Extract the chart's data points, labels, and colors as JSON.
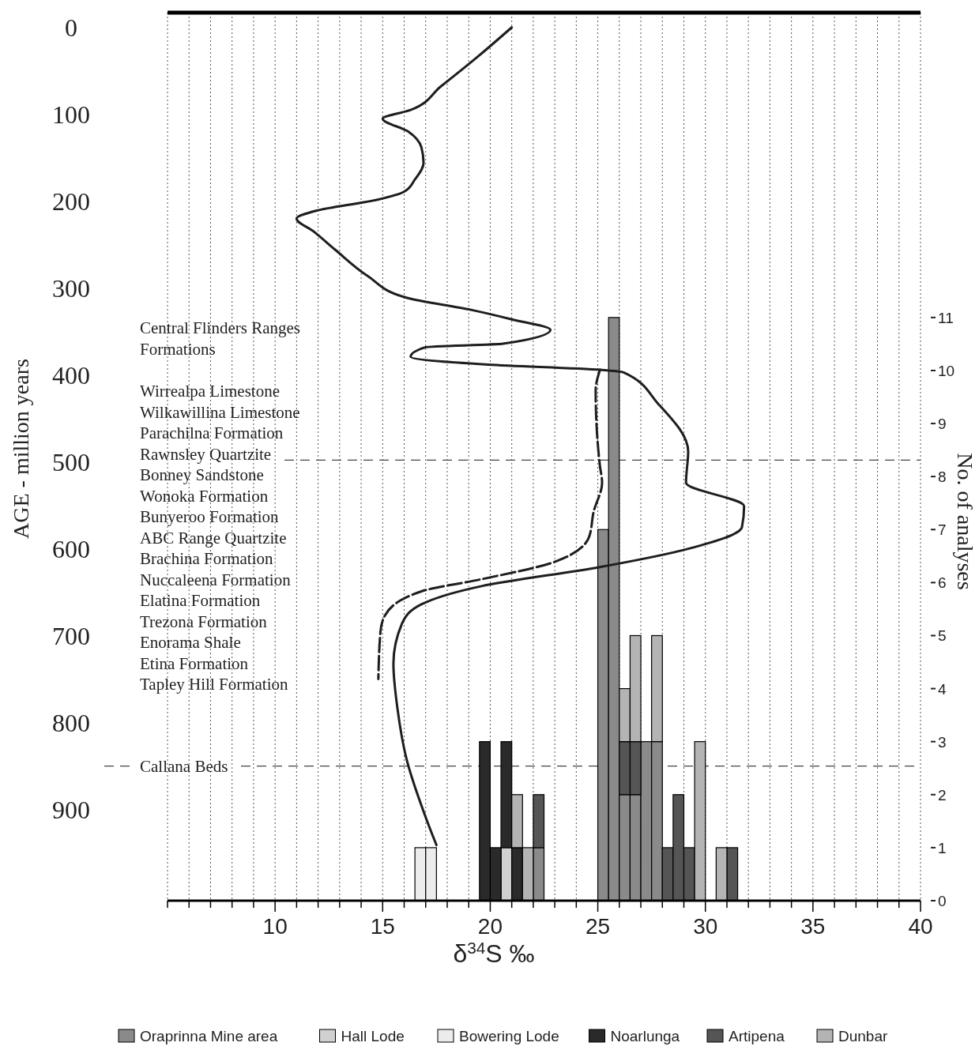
{
  "chart_data": {
    "type": "bar",
    "xlabel": "δ$^{34}$S ‰",
    "ylabel": "AGE - million years",
    "y2label": "No. of analyses",
    "x": [
      16.75,
      17.25,
      19.75,
      20.25,
      20.75,
      21.25,
      21.75,
      22.25,
      25.25,
      25.75,
      26.25,
      26.75,
      27.25,
      27.75,
      28.25,
      28.75,
      29.25,
      29.75,
      30.75,
      31.25
    ],
    "stacked": true,
    "series": [
      {
        "name": "Oraprinna Mine area",
        "color": "#8a8a8a",
        "axis": "y2",
        "values": [
          null,
          null,
          null,
          null,
          null,
          null,
          null,
          1,
          7,
          11,
          2,
          2,
          3,
          3,
          null,
          null,
          null,
          null,
          null,
          null
        ]
      },
      {
        "name": "Hall Lode",
        "color": "#d0d0d0",
        "axis": "y2",
        "values": [
          null,
          null,
          null,
          null,
          1,
          null,
          null,
          null,
          null,
          null,
          null,
          null,
          null,
          null,
          null,
          null,
          null,
          null,
          null,
          null
        ]
      },
      {
        "name": "Bowering Lode",
        "color": "#ececec",
        "axis": "y2",
        "values": [
          1,
          1,
          null,
          null,
          null,
          null,
          null,
          null,
          null,
          null,
          null,
          null,
          null,
          null,
          null,
          null,
          null,
          null,
          null,
          null
        ]
      },
      {
        "name": "Noarlunga",
        "color": "#2a2a2a",
        "axis": "y2",
        "values": [
          null,
          null,
          3,
          1,
          2,
          1,
          null,
          null,
          null,
          null,
          null,
          null,
          null,
          null,
          null,
          null,
          null,
          null,
          null,
          null
        ]
      },
      {
        "name": "Artipena",
        "color": "#555555",
        "axis": "y2",
        "values": [
          null,
          null,
          null,
          null,
          null,
          null,
          null,
          1,
          null,
          null,
          1,
          1,
          null,
          null,
          1,
          2,
          1,
          null,
          null,
          1
        ]
      },
      {
        "name": "Dunbar",
        "color": "#b4b4b4",
        "axis": "y2",
        "values": [
          null,
          null,
          null,
          null,
          null,
          1,
          1,
          null,
          null,
          null,
          1,
          2,
          null,
          2,
          null,
          null,
          null,
          3,
          1,
          null
        ]
      },
      {
        "type": "line",
        "color": "#1e1e1e",
        "line_style": "solid",
        "x": [
          21.0,
          19.5,
          17.7,
          16.3,
          15.0,
          16.2,
          16.8,
          16.9,
          16.5,
          16.0,
          14.8,
          11.9,
          11.0,
          11.8,
          12.8,
          14.3,
          16.1,
          19.1,
          21.0,
          22.8,
          20.6,
          17.0,
          16.3,
          19.9,
          25.1,
          26.2,
          27.8,
          29.2,
          29.1,
          31.8,
          31.7,
          29.2,
          25.1,
          19.6,
          16.8,
          15.9,
          15.5,
          15.7,
          16.1,
          17.0,
          17.5
        ],
        "values": [
          0,
          32,
          68,
          95,
          105,
          120,
          138,
          156,
          175,
          189,
          198,
          211,
          220,
          235,
          256,
          286,
          311,
          325,
          336,
          348,
          364,
          368,
          379,
          388,
          394,
          397,
          433,
          488,
          524,
          551,
          575,
          600,
          621,
          643,
          664,
          686,
          732,
          786,
          841,
          909,
          941
        ]
      },
      {
        "type": "line",
        "color": "#1e1e1e",
        "line_style": "dashed",
        "x": [
          25.1,
          24.9,
          25.1,
          25.2,
          24.8,
          24.6,
          23.0,
          19.6,
          16.8,
          15.1,
          14.9,
          14.8
        ],
        "values": [
          394,
          418,
          505,
          524,
          558,
          586,
          615,
          635,
          649,
          677,
          695,
          750
        ]
      }
    ],
    "xlim": [
      5,
      40
    ],
    "xticks": [
      {
        "value": 5,
        "label": null
      },
      {
        "value": 6,
        "label": null
      },
      {
        "value": 7,
        "label": null
      },
      {
        "value": 8,
        "label": null
      },
      {
        "value": 9,
        "label": null
      },
      10,
      {
        "value": 11,
        "label": null
      },
      {
        "value": 12,
        "label": null
      },
      {
        "value": 13,
        "label": null
      },
      {
        "value": 14,
        "label": null
      },
      15,
      {
        "value": 16,
        "label": null
      },
      {
        "value": 17,
        "label": null
      },
      {
        "value": 18,
        "label": null
      },
      {
        "value": 19,
        "label": null
      },
      20,
      {
        "value": 21,
        "label": null
      },
      {
        "value": 22,
        "label": null
      },
      {
        "value": 23,
        "label": null
      },
      {
        "value": 24,
        "label": null
      },
      25,
      {
        "value": 26,
        "label": null
      },
      {
        "value": 27,
        "label": null
      },
      {
        "value": 28,
        "label": null
      },
      {
        "value": 29,
        "label": null
      },
      30,
      {
        "value": 31,
        "label": null
      },
      {
        "value": 32,
        "label": null
      },
      {
        "value": 33,
        "label": null
      },
      {
        "value": 34,
        "label": null
      },
      35,
      {
        "value": 36,
        "label": null
      },
      {
        "value": 37,
        "label": null
      },
      {
        "value": 38,
        "label": null
      },
      {
        "value": 39,
        "label": null
      },
      40
    ],
    "ylim": [
      1005,
      -17
    ],
    "yticks": [
      0,
      100,
      200,
      300,
      400,
      500,
      600,
      700,
      800,
      900
    ],
    "y2lim": [
      0,
      16.75
    ],
    "y2ticks": [
      0,
      1,
      2,
      3,
      4,
      5,
      6,
      7,
      8,
      9,
      10,
      11
    ],
    "grid": "x",
    "legend": "bottom",
    "marker": "none",
    "ref_lines": [
      {
        "axis": "y",
        "value": 498,
        "line_style": "dashed"
      },
      {
        "axis": "y",
        "value": 850,
        "label": "Callana Beds",
        "line_style": "dashed"
      }
    ],
    "annotations": [
      "Central Flinders Ranges Formations",
      "Wirrealpa Limestone",
      "Wilkawillina Limestone",
      "Parachilna Formation",
      "Rawnsley Quartzite",
      "Bonney Sandstone",
      "Wonoka Formation",
      "Bunyeroo Formation",
      "ABC Range Quartzite",
      "Brachina Formation",
      "Nuccaleena Formation",
      "Elatina Formation",
      "Trezona Formation",
      "Enorama Shale",
      "Etina Formation",
      "Tapley Hill Formation"
    ]
  }
}
